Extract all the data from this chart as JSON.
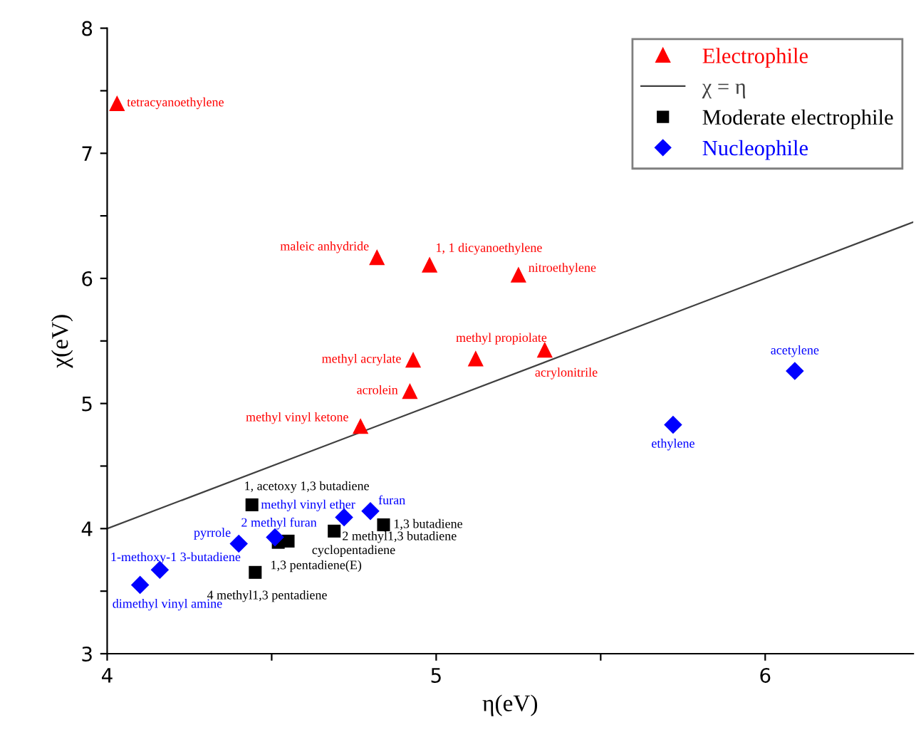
{
  "chart_data": {
    "type": "scatter",
    "xlabel": "η(eV)",
    "ylabel": "χ(eV)",
    "xlim": [
      4,
      6.45
    ],
    "ylim": [
      3,
      8
    ],
    "xticks": [
      4,
      {
        "value": 4.5,
        "label": null
      },
      5,
      {
        "value": 5.5,
        "label": null
      },
      6
    ],
    "yticks": [
      3,
      {
        "value": 3.5,
        "label": null
      },
      4,
      {
        "value": 4.5,
        "label": null
      },
      5,
      {
        "value": 5.5,
        "label": null
      },
      6,
      {
        "value": 6.5,
        "label": null
      },
      7,
      {
        "value": 7.5,
        "label": null
      },
      8
    ],
    "grid": false,
    "legend": "top right",
    "series": [
      {
        "name": "Electrophile",
        "type": "scatter",
        "marker": "triangle",
        "color": "#ff0000",
        "x": [
          4.03,
          4.82,
          4.98,
          5.25,
          5.12,
          4.93,
          4.92,
          5.33,
          4.77
        ],
        "values": [
          7.4,
          6.17,
          6.11,
          6.03,
          5.36,
          5.35,
          5.1,
          5.43,
          4.82
        ]
      },
      {
        "name": "χ = η",
        "type": "line",
        "line_style": "solid",
        "color": "#404040",
        "x": [
          4,
          6.45
        ],
        "values": [
          4,
          6.45
        ]
      },
      {
        "name": "Moderate electrophile",
        "type": "scatter",
        "marker": "square",
        "color": "#000000",
        "x": [
          4.44,
          4.69,
          4.84,
          4.55,
          4.52,
          4.45
        ],
        "values": [
          4.19,
          3.98,
          4.03,
          3.9,
          3.89,
          3.65
        ]
      },
      {
        "name": "Nucleophile",
        "type": "scatter",
        "marker": "diamond",
        "color": "#0000ff",
        "x": [
          6.09,
          5.72,
          4.72,
          4.8,
          4.51,
          4.4,
          4.16,
          4.1
        ],
        "values": [
          5.26,
          4.83,
          4.09,
          4.14,
          3.93,
          3.88,
          3.67,
          3.55
        ]
      }
    ],
    "annotations": [
      {
        "text": "tetracyanoethylene",
        "x": 4.03,
        "y": 7.4
      },
      {
        "text": "maleic anhydride",
        "x": 4.82,
        "y": 6.17
      },
      {
        "text": "1, 1 dicyanoethylene",
        "x": 4.98,
        "y": 6.11
      },
      {
        "text": "nitroethylene",
        "x": 5.25,
        "y": 6.03
      },
      {
        "text": "methyl propiolate",
        "x": 5.12,
        "y": 5.36
      },
      {
        "text": "methyl acrylate",
        "x": 4.93,
        "y": 5.35
      },
      {
        "text": "acrolein",
        "x": 4.92,
        "y": 5.1
      },
      {
        "text": "acrylonitrile",
        "x": 5.33,
        "y": 5.43
      },
      {
        "text": "methyl vinyl ketone",
        "x": 4.77,
        "y": 4.82
      },
      {
        "text": "1, acetoxy 1,3 butadiene",
        "x": 4.44,
        "y": 4.19
      },
      {
        "text": "2 methyl1,3 butadiene",
        "x": 4.69,
        "y": 3.98
      },
      {
        "text": "1,3 butadiene",
        "x": 4.84,
        "y": 4.03
      },
      {
        "text": "cyclopentadiene",
        "x": 4.55,
        "y": 3.9
      },
      {
        "text": "1,3 pentadiene(E)",
        "x": 4.52,
        "y": 3.89
      },
      {
        "text": "4 methyl1,3 pentadiene",
        "x": 4.45,
        "y": 3.65
      },
      {
        "text": "acetylene",
        "x": 6.09,
        "y": 5.26
      },
      {
        "text": "ethylene",
        "x": 5.72,
        "y": 4.83
      },
      {
        "text": "methyl vinyl ether",
        "x": 4.72,
        "y": 4.09
      },
      {
        "text": "furan",
        "x": 4.8,
        "y": 4.14
      },
      {
        "text": "2 methyl furan",
        "x": 4.51,
        "y": 3.93
      },
      {
        "text": "pyrrole",
        "x": 4.4,
        "y": 3.88
      },
      {
        "text": "1-methoxy-1 3-butadiene",
        "x": 4.16,
        "y": 3.67
      },
      {
        "text": "dimethyl vinyl amine",
        "x": 4.1,
        "y": 3.55
      }
    ]
  }
}
